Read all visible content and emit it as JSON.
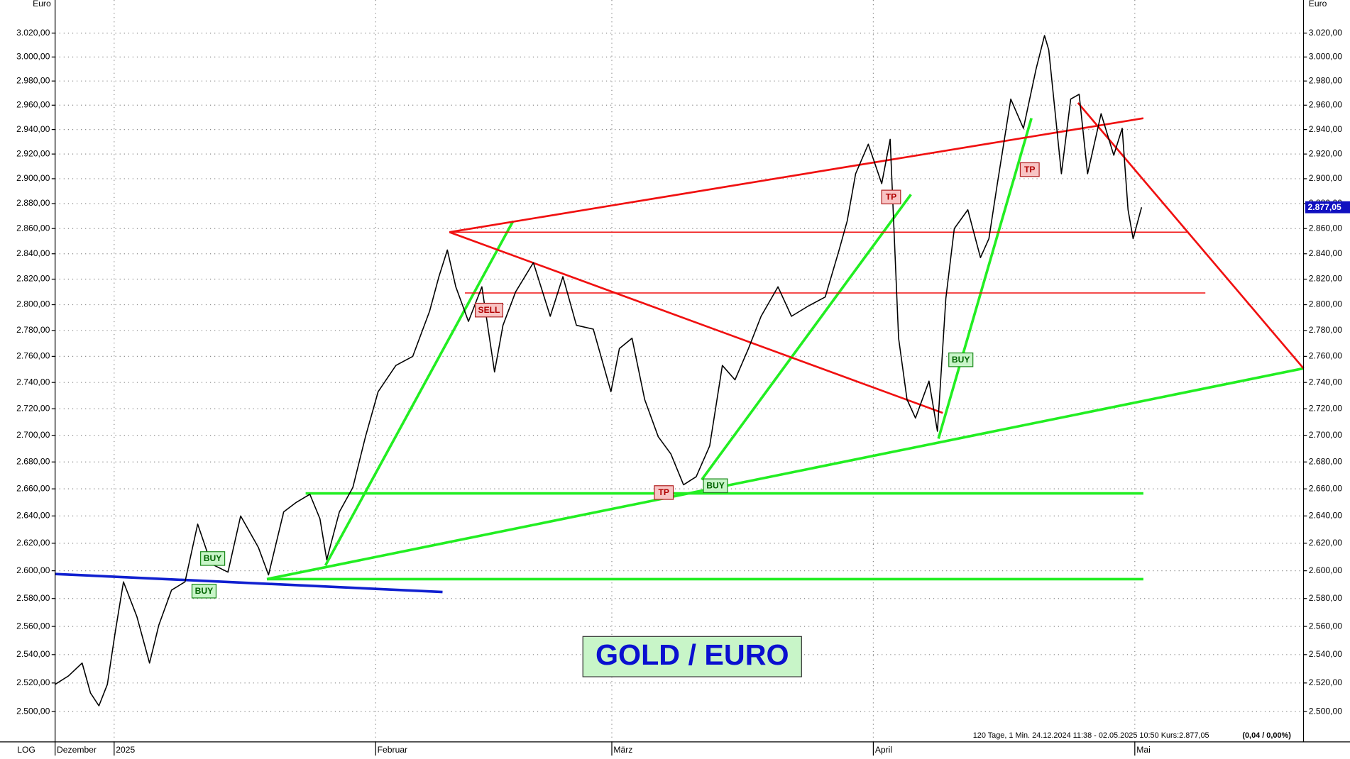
{
  "chart_data": {
    "type": "line",
    "title": "GOLD / EURO",
    "y_unit": "Euro",
    "scale_label": "LOG",
    "log_scale": true,
    "grid": true,
    "color": "#000000",
    "info": "120 Tage, 1 Min. 24.12.2024 11:38 - 02.05.2025 10:50 Kurs:2.877,05",
    "info_change": "(0,04 / 0,00%)",
    "current_price": {
      "value": 2877.05,
      "label": "2.877,05"
    },
    "annotations": [
      "BUY",
      "BUY",
      "SELL",
      "TP",
      "BUY",
      "TP",
      "BUY",
      "TP"
    ],
    "xlim": [
      1,
      149
    ],
    "xticks": [
      {
        "value": 1,
        "label": "Dezember"
      },
      {
        "value": 8,
        "label": "2025"
      },
      {
        "value": 39,
        "label": "Februar"
      },
      {
        "value": 67,
        "label": "März"
      },
      {
        "value": 98,
        "label": "April"
      },
      {
        "value": 129,
        "label": "Mai"
      }
    ],
    "ylim": [
      2479,
      3048
    ],
    "yticks": [
      {
        "value": 2500,
        "label": "2.500,00"
      },
      {
        "value": 2520,
        "label": "2.520,00"
      },
      {
        "value": 2540,
        "label": "2.540,00"
      },
      {
        "value": 2560,
        "label": "2.560,00"
      },
      {
        "value": 2580,
        "label": "2.580,00"
      },
      {
        "value": 2600,
        "label": "2.600,00"
      },
      {
        "value": 2620,
        "label": "2.620,00"
      },
      {
        "value": 2640,
        "label": "2.640,00"
      },
      {
        "value": 2660,
        "label": "2.660,00"
      },
      {
        "value": 2680,
        "label": "2.680,00"
      },
      {
        "value": 2700,
        "label": "2.700,00"
      },
      {
        "value": 2720,
        "label": "2.720,00"
      },
      {
        "value": 2740,
        "label": "2.740,00"
      },
      {
        "value": 2760,
        "label": "2.760,00"
      },
      {
        "value": 2780,
        "label": "2.780,00"
      },
      {
        "value": 2800,
        "label": "2.800,00"
      },
      {
        "value": 2820,
        "label": "2.820,00"
      },
      {
        "value": 2840,
        "label": "2.840,00"
      },
      {
        "value": 2860,
        "label": "2.860,00"
      },
      {
        "value": 2880,
        "label": "2.880,00"
      },
      {
        "value": 2900,
        "label": "2.900,00"
      },
      {
        "value": 2920,
        "label": "2.920,00"
      },
      {
        "value": 2940,
        "label": "2.940,00"
      },
      {
        "value": 2960,
        "label": "2.960,00"
      },
      {
        "value": 2980,
        "label": "2.980,00"
      },
      {
        "value": 3000,
        "label": "3.000,00"
      },
      {
        "value": 3020,
        "label": "3.020,00"
      }
    ],
    "x": [
      1,
      2.6,
      4.2,
      5.2,
      6.2,
      7.2,
      8.1,
      9.1,
      10.7,
      12.2,
      13.3,
      14.8,
      16.4,
      17.9,
      19.5,
      21.5,
      23.0,
      25.1,
      26.3,
      28.1,
      29.6,
      31.2,
      32.4,
      33.2,
      34.7,
      36.3,
      37.8,
      39.3,
      41.4,
      43.4,
      45.4,
      46.5,
      47.5,
      48.5,
      50.0,
      51.6,
      53.1,
      54.1,
      55.6,
      57.7,
      59.7,
      61.2,
      62.8,
      64.8,
      66.9,
      67.9,
      69.4,
      70.9,
      72.5,
      74.0,
      75.5,
      77.0,
      78.6,
      80.1,
      81.6,
      83.2,
      84.7,
      86.7,
      88.3,
      90.3,
      92.3,
      93.9,
      94.9,
      95.9,
      97.4,
      99.0,
      100.0,
      101.0,
      102.0,
      103.0,
      104.6,
      105.6,
      106.6,
      107.6,
      109.2,
      110.7,
      111.7,
      112.7,
      114.3,
      115.8,
      117.3,
      118.3,
      118.8,
      120.3,
      121.4,
      122.4,
      123.4,
      125.0,
      126.5,
      127.5,
      128.2,
      128.8,
      129.8
    ],
    "values": [
      2519,
      2525,
      2534,
      2513,
      2504,
      2519,
      2555,
      2592,
      2567,
      2534,
      2561,
      2586,
      2592,
      2634,
      2605,
      2599,
      2640,
      2617,
      2597,
      2643,
      2650,
      2656,
      2638,
      2608,
      2643,
      2661,
      2699,
      2733,
      2753,
      2760,
      2795,
      2822,
      2843,
      2814,
      2787,
      2814,
      2748,
      2784,
      2810,
      2833,
      2791,
      2822,
      2784,
      2781,
      2733,
      2766,
      2774,
      2727,
      2699,
      2686,
      2663,
      2669,
      2692,
      2753,
      2742,
      2766,
      2791,
      2814,
      2791,
      2799,
      2806,
      2842,
      2866,
      2904,
      2928,
      2896,
      2932,
      2774,
      2727,
      2713,
      2741,
      2703,
      2805,
      2860,
      2875,
      2837,
      2852,
      2896,
      2965,
      2941,
      2990,
      3018,
      3006,
      2904,
      2965,
      2969,
      2904,
      2953,
      2919,
      2941,
      2875,
      2852,
      2877
    ]
  }
}
